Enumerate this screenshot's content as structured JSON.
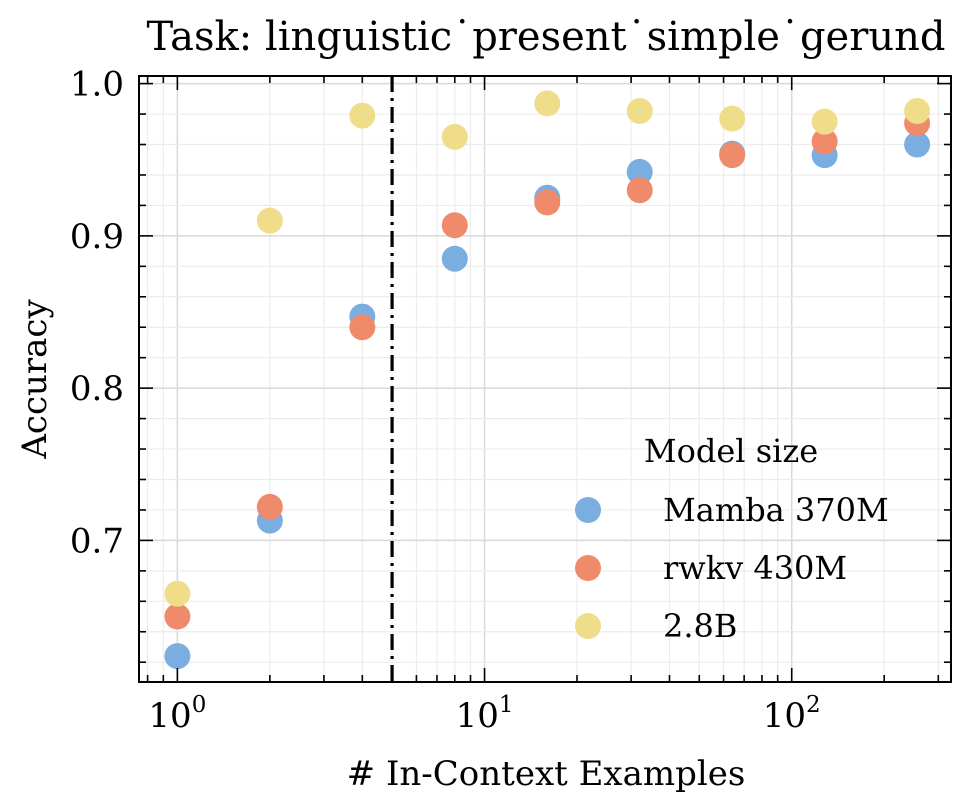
{
  "chart_data": {
    "type": "scatter",
    "title": "Task: linguistic˙present˙simple˙gerund",
    "xlabel": "# In-Context Examples",
    "ylabel": "Accuracy",
    "xscale": "log",
    "xlim": [
      0.75,
      330
    ],
    "ylim": [
      0.607,
      1.005
    ],
    "x_ticks": [
      {
        "value": 1,
        "base": "10",
        "exp": "0"
      },
      {
        "value": 10,
        "base": "10",
        "exp": "1"
      },
      {
        "value": 100,
        "base": "10",
        "exp": "2"
      }
    ],
    "y_ticks": [
      {
        "value": 0.7,
        "label": "0.7"
      },
      {
        "value": 0.8,
        "label": "0.8"
      },
      {
        "value": 0.9,
        "label": "0.9"
      },
      {
        "value": 1.0,
        "label": "1.0"
      }
    ],
    "vline_x": 5,
    "grid": true,
    "legend": {
      "title": "Model size",
      "position": "lower-right"
    },
    "series": [
      {
        "name": "Mamba 370M",
        "color": "#7aade0",
        "x": [
          1,
          2,
          4,
          8,
          16,
          32,
          64,
          128,
          256
        ],
        "y": [
          0.624,
          0.713,
          0.847,
          0.885,
          0.925,
          0.942,
          0.954,
          0.953,
          0.96
        ]
      },
      {
        "name": "rwkv 430M",
        "color": "#ef8a6b",
        "x": [
          1,
          2,
          4,
          8,
          16,
          32,
          64,
          128,
          256
        ],
        "y": [
          0.65,
          0.722,
          0.84,
          0.907,
          0.922,
          0.93,
          0.953,
          0.962,
          0.974
        ]
      },
      {
        "name": "2.8B",
        "color": "#efdd8a",
        "x": [
          1,
          2,
          4,
          8,
          16,
          32,
          64,
          128,
          256
        ],
        "y": [
          0.665,
          0.91,
          0.979,
          0.965,
          0.987,
          0.982,
          0.977,
          0.975,
          0.982
        ]
      }
    ]
  }
}
